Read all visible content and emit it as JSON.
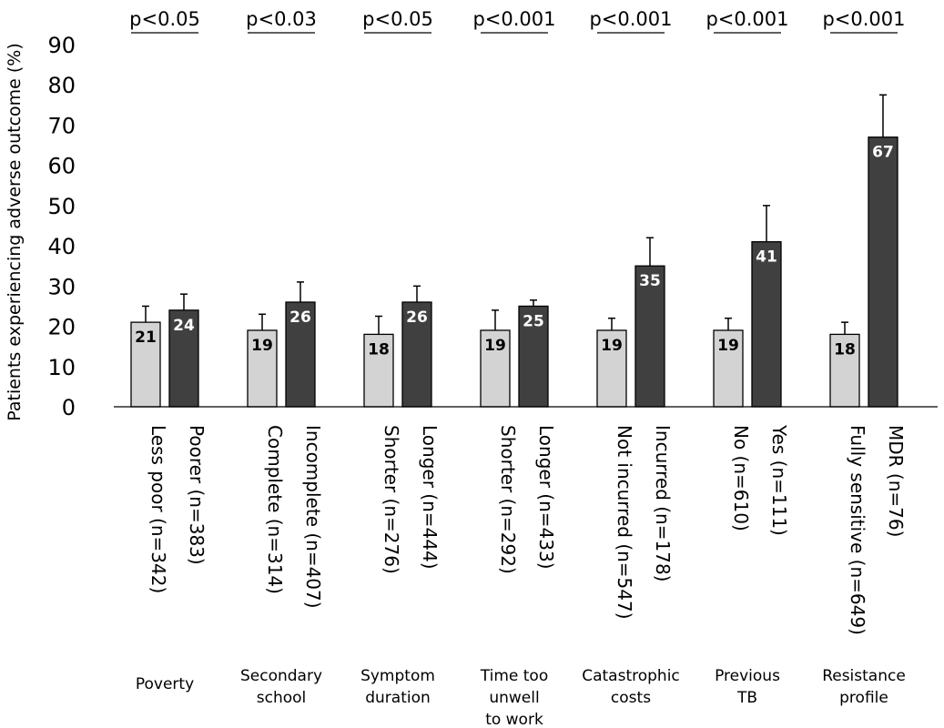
{
  "chart_data": {
    "type": "bar",
    "ylabel": "Patients experiencing adverse outcome (%)",
    "ylim": [
      0,
      90
    ],
    "yticks": [
      0,
      10,
      20,
      30,
      40,
      50,
      60,
      70,
      80,
      90
    ],
    "colors": {
      "light": "#d3d3d3",
      "dark": "#404040",
      "axis": "#000000"
    },
    "groups": [
      {
        "name": [
          "Poverty"
        ],
        "pvalue": "p<0.05",
        "bars": [
          {
            "label": "Less poor (n=342)",
            "value": 21,
            "err": 4,
            "color": "light"
          },
          {
            "label": "Poorer (n=383)",
            "value": 24,
            "err": 4,
            "color": "dark"
          }
        ]
      },
      {
        "name": [
          "Secondary",
          "school"
        ],
        "pvalue": "p<0.03",
        "bars": [
          {
            "label": "Complete (n=314)",
            "value": 19,
            "err": 4,
            "color": "light"
          },
          {
            "label": "Incomplete (n=407)",
            "value": 26,
            "err": 5,
            "color": "dark"
          }
        ]
      },
      {
        "name": [
          "Symptom",
          "duration"
        ],
        "pvalue": "p<0.05",
        "bars": [
          {
            "label": "Shorter (n=276)",
            "value": 18,
            "err": 4.5,
            "color": "light"
          },
          {
            "label": "Longer (n=444)",
            "value": 26,
            "err": 4,
            "color": "dark"
          }
        ]
      },
      {
        "name": [
          "Time too",
          "unwell",
          "to work"
        ],
        "pvalue": "p<0.001",
        "bars": [
          {
            "label": "Shorter (n=292)",
            "value": 19,
            "err": 5,
            "color": "light"
          },
          {
            "label": "Longer (n=433)",
            "value": 25,
            "err": 1.5,
            "color": "dark"
          }
        ]
      },
      {
        "name": [
          "Catastrophic",
          "costs"
        ],
        "pvalue": "p<0.001",
        "bars": [
          {
            "label": "Not incurred (n=547)",
            "value": 19,
            "err": 3,
            "color": "light"
          },
          {
            "label": "Incurred (n=178)",
            "value": 35,
            "err": 7,
            "color": "dark"
          }
        ]
      },
      {
        "name": [
          "Previous",
          "TB"
        ],
        "pvalue": "p<0.001",
        "bars": [
          {
            "label": "No (n=610)",
            "value": 19,
            "err": 3,
            "color": "light"
          },
          {
            "label": "Yes (n=111)",
            "value": 41,
            "err": 9,
            "color": "dark"
          }
        ]
      },
      {
        "name": [
          "Resistance",
          "profile"
        ],
        "pvalue": "p<0.001",
        "bars": [
          {
            "label": "Fully sensitive (n=649)",
            "value": 18,
            "err": 3,
            "color": "light"
          },
          {
            "label": "MDR (n=76)",
            "value": 67,
            "err": 10.5,
            "color": "dark"
          }
        ]
      }
    ]
  }
}
